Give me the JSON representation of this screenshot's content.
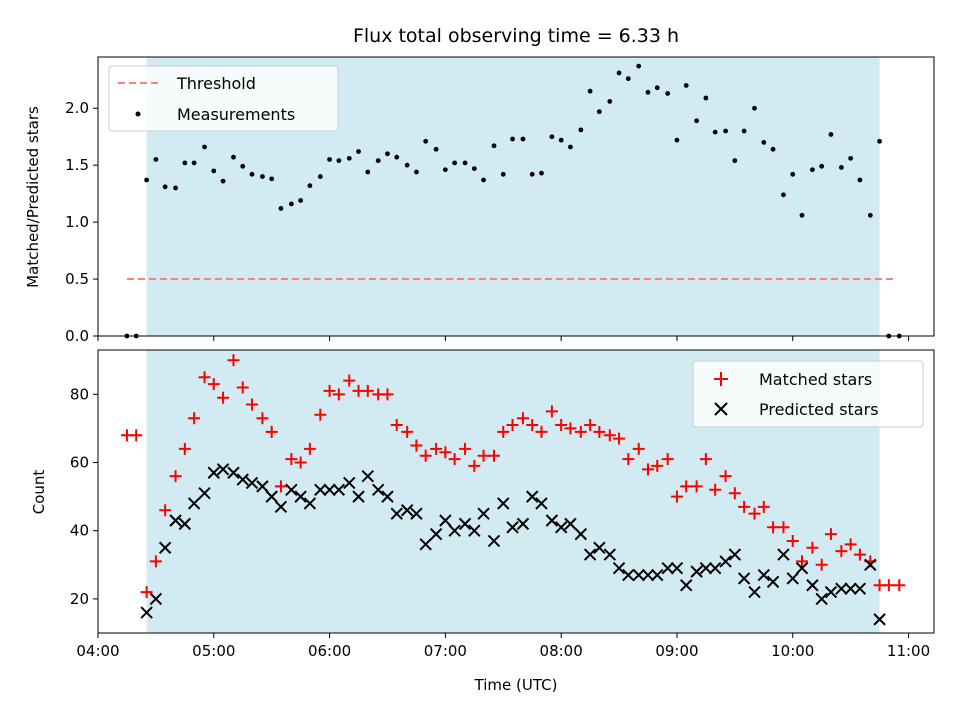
{
  "chart_data": [
    {
      "type": "scatter",
      "title": "Flux total observing time = 6.33 h",
      "ylabel": "Matched/Predicted stars",
      "ylim": [
        0,
        2.45
      ],
      "yticks": [
        0.0,
        0.5,
        1.0,
        1.5,
        2.0
      ],
      "ytick_labels": [
        "0.0",
        "0.5",
        "1.0",
        "1.5",
        "2.0"
      ],
      "xlim": [
        4.0,
        11.22
      ],
      "legend_position": "top-left",
      "shaded_region": [
        4.42,
        10.75
      ],
      "shade_color": "#add8e6",
      "threshold": {
        "name": "Threshold",
        "y": 0.5,
        "x": [
          4.25,
          10.9
        ],
        "color": "#ff7f7f",
        "style": "dashed"
      },
      "series": [
        {
          "name": "Measurements",
          "color": "#000000",
          "x": [
            4.25,
            4.33,
            4.42,
            4.5,
            4.58,
            4.67,
            4.75,
            4.83,
            4.92,
            5.0,
            5.08,
            5.17,
            5.25,
            5.33,
            5.42,
            5.5,
            5.58,
            5.67,
            5.75,
            5.83,
            5.92,
            6.0,
            6.08,
            6.17,
            6.25,
            6.33,
            6.42,
            6.5,
            6.58,
            6.67,
            6.75,
            6.83,
            6.92,
            7.0,
            7.08,
            7.17,
            7.25,
            7.33,
            7.42,
            7.5,
            7.58,
            7.67,
            7.75,
            7.83,
            7.92,
            8.0,
            8.08,
            8.17,
            8.25,
            8.33,
            8.42,
            8.5,
            8.58,
            8.67,
            8.75,
            8.83,
            8.92,
            9.0,
            9.08,
            9.17,
            9.25,
            9.33,
            9.42,
            9.5,
            9.58,
            9.67,
            9.75,
            9.83,
            9.92,
            10.0,
            10.08,
            10.17,
            10.25,
            10.33,
            10.42,
            10.5,
            10.58,
            10.67,
            10.75,
            10.83,
            10.92
          ],
          "y": [
            0.0,
            0.0,
            1.37,
            1.55,
            1.31,
            1.3,
            1.52,
            1.52,
            1.66,
            1.45,
            1.36,
            1.57,
            1.49,
            1.42,
            1.4,
            1.38,
            1.12,
            1.16,
            1.19,
            1.32,
            1.4,
            1.55,
            1.54,
            1.56,
            1.62,
            1.44,
            1.54,
            1.6,
            1.57,
            1.5,
            1.44,
            1.71,
            1.64,
            1.46,
            1.52,
            1.52,
            1.47,
            1.37,
            1.67,
            1.42,
            1.73,
            1.73,
            1.42,
            1.43,
            1.75,
            1.72,
            1.66,
            1.81,
            2.15,
            1.97,
            2.06,
            2.31,
            2.26,
            2.37,
            2.14,
            2.18,
            2.13,
            1.72,
            2.2,
            1.89,
            2.09,
            1.79,
            1.8,
            1.54,
            1.8,
            2.0,
            1.7,
            1.64,
            1.24,
            1.42,
            1.06,
            1.46,
            1.49,
            1.77,
            1.48,
            1.56,
            1.37,
            1.06,
            1.71,
            0.0,
            0.0
          ]
        }
      ]
    },
    {
      "type": "scatter",
      "xlabel": "Time (UTC)",
      "ylabel": "Count",
      "xlim": [
        4.0,
        11.22
      ],
      "ylim": [
        10,
        93
      ],
      "yticks": [
        20,
        40,
        60,
        80
      ],
      "ytick_labels": [
        "20",
        "40",
        "60",
        "80"
      ],
      "xticks": [
        4,
        5,
        6,
        7,
        8,
        9,
        10,
        11
      ],
      "xtick_labels": [
        "04:00",
        "05:00",
        "06:00",
        "07:00",
        "08:00",
        "09:00",
        "10:00",
        "11:00"
      ],
      "legend_position": "top-right",
      "shaded_region": [
        4.42,
        10.75
      ],
      "shade_color": "#add8e6",
      "series": [
        {
          "name": "Matched stars",
          "marker": "plus",
          "color": "#ff0000",
          "x": [
            4.25,
            4.33,
            4.42,
            4.5,
            4.58,
            4.67,
            4.75,
            4.83,
            4.92,
            5.0,
            5.08,
            5.17,
            5.25,
            5.33,
            5.42,
            5.5,
            5.58,
            5.67,
            5.75,
            5.83,
            5.92,
            6.0,
            6.08,
            6.17,
            6.25,
            6.33,
            6.42,
            6.5,
            6.58,
            6.67,
            6.75,
            6.83,
            6.92,
            7.0,
            7.08,
            7.17,
            7.25,
            7.33,
            7.42,
            7.5,
            7.58,
            7.67,
            7.75,
            7.83,
            7.92,
            8.0,
            8.08,
            8.17,
            8.25,
            8.33,
            8.42,
            8.5,
            8.58,
            8.67,
            8.75,
            8.83,
            8.92,
            9.0,
            9.08,
            9.17,
            9.25,
            9.33,
            9.42,
            9.5,
            9.58,
            9.67,
            9.75,
            9.83,
            9.92,
            10.0,
            10.08,
            10.17,
            10.25,
            10.33,
            10.42,
            10.5,
            10.58,
            10.67,
            10.75,
            10.83,
            10.92
          ],
          "y": [
            68,
            68,
            22,
            31,
            46,
            56,
            64,
            73,
            85,
            83,
            79,
            90,
            82,
            77,
            73,
            69,
            53,
            61,
            60,
            64,
            74,
            81,
            80,
            84,
            81,
            81,
            80,
            80,
            71,
            69,
            65,
            62,
            64,
            63,
            61,
            64,
            59,
            62,
            62,
            69,
            71,
            73,
            71,
            69,
            75,
            71,
            70,
            69,
            71,
            69,
            68,
            67,
            61,
            64,
            58,
            59,
            61,
            50,
            53,
            53,
            61,
            52,
            56,
            51,
            47,
            45,
            47,
            41,
            41,
            37,
            31,
            35,
            30,
            39,
            34,
            36,
            33,
            31,
            24,
            24,
            24
          ]
        },
        {
          "name": "Predicted stars",
          "marker": "x",
          "color": "#000000",
          "x": [
            4.42,
            4.5,
            4.58,
            4.67,
            4.75,
            4.83,
            4.92,
            5.0,
            5.08,
            5.17,
            5.25,
            5.33,
            5.42,
            5.5,
            5.58,
            5.67,
            5.75,
            5.83,
            5.92,
            6.0,
            6.08,
            6.17,
            6.25,
            6.33,
            6.42,
            6.5,
            6.58,
            6.67,
            6.75,
            6.83,
            6.92,
            7.0,
            7.08,
            7.17,
            7.25,
            7.33,
            7.42,
            7.5,
            7.58,
            7.67,
            7.75,
            7.83,
            7.92,
            8.0,
            8.08,
            8.17,
            8.25,
            8.33,
            8.42,
            8.5,
            8.58,
            8.67,
            8.75,
            8.83,
            8.92,
            9.0,
            9.08,
            9.17,
            9.25,
            9.33,
            9.42,
            9.5,
            9.58,
            9.67,
            9.75,
            9.83,
            9.92,
            10.0,
            10.08,
            10.17,
            10.25,
            10.33,
            10.42,
            10.5,
            10.58,
            10.67,
            10.75
          ],
          "y": [
            16,
            20,
            35,
            43,
            42,
            48,
            51,
            57,
            58,
            57,
            55,
            54,
            53,
            50,
            47,
            52,
            50,
            48,
            52,
            52,
            52,
            54,
            50,
            56,
            52,
            50,
            45,
            46,
            45,
            36,
            39,
            43,
            40,
            42,
            40,
            45,
            37,
            48,
            41,
            42,
            50,
            48,
            43,
            41,
            42,
            39,
            33,
            35,
            33,
            29,
            27,
            27,
            27,
            27,
            29,
            29,
            24,
            28,
            29,
            29,
            31,
            33,
            26,
            22,
            27,
            25,
            33,
            26,
            29,
            24,
            20,
            22,
            23,
            23,
            23,
            30,
            14
          ]
        }
      ]
    }
  ]
}
